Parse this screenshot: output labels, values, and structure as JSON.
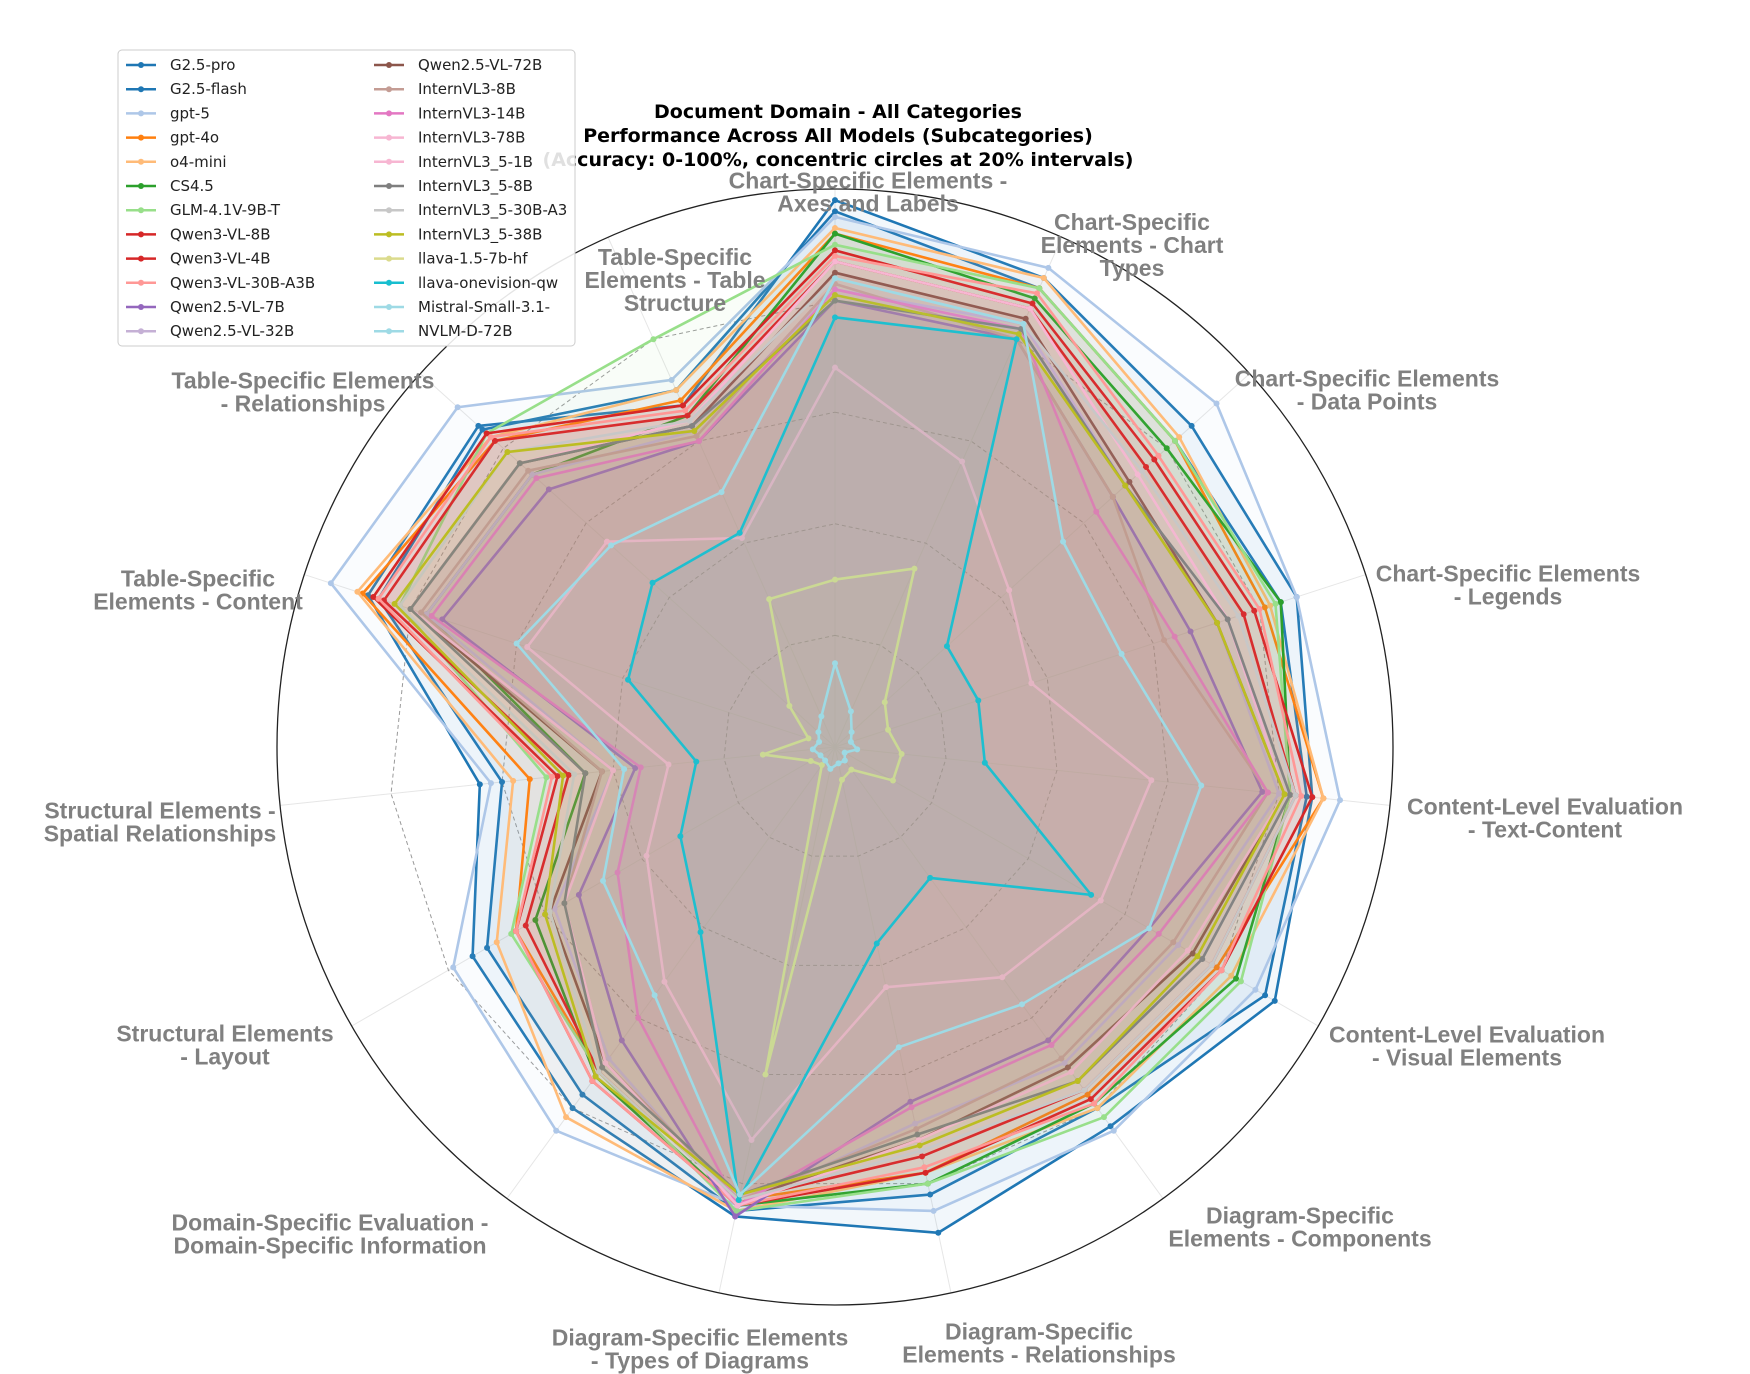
{
  "chart_data": {
    "type": "radar",
    "title": [
      "Document Domain - All Categories",
      "Performance Across All Models (Subcategories)",
      "(Accuracy: 0-100%, concentric circles at 20% intervals)"
    ],
    "r_range": [
      0,
      100
    ],
    "gridline_step": 20,
    "legend_position": "top-left",
    "categories": [
      "Chart-Specific Elements - Axes and Labels",
      "Chart-Specific Elements - Chart Types",
      "Chart-Specific Elements - Data Points",
      "Chart-Specific Elements - Legends",
      "Content-Level Evaluation - Text-Content",
      "Content-Level Evaluation - Visual Elements",
      "Diagram-Specific Elements - Components",
      "Diagram-Specific Elements - Relationships",
      "Diagram-Specific Elements - Types of Diagrams",
      "Domain-Specific Evaluation - Domain-Specific Information",
      "Structural Elements - Layout",
      "Structural Elements - Spatial Relationships",
      "Table-Specific Elements - Content",
      "Table-Specific Elements - Relationships",
      "Table-Specific Elements - Table Structure"
    ],
    "series": [
      {
        "name": "G2.5-pro",
        "color": "#1f77b4",
        "values": [
          98,
          92,
          86,
          87,
          86,
          91,
          84,
          89,
          86,
          80,
          75,
          64,
          88,
          86,
          67
        ]
      },
      {
        "name": "G2.5-flash",
        "color": "#1f77b4",
        "values": [
          96,
          90,
          82,
          84,
          85,
          89,
          80,
          82,
          85,
          77,
          72,
          60,
          86,
          85,
          70
        ]
      },
      {
        "name": "gpt-5",
        "color": "#aec7e8",
        "values": [
          95,
          94,
          92,
          87,
          91,
          87,
          85,
          85,
          84,
          85,
          79,
          62,
          95,
          91,
          72
        ]
      },
      {
        "name": "gpt-4o",
        "color": "#ff7f0e",
        "values": [
          92,
          90,
          82,
          81,
          88,
          79,
          77,
          78,
          83,
          72,
          66,
          55,
          89,
          82,
          68
        ]
      },
      {
        "name": "o4-mini",
        "color": "#ffbb78",
        "values": [
          93,
          92,
          83,
          82,
          88,
          82,
          80,
          78,
          85,
          82,
          70,
          58,
          90,
          83,
          70
        ]
      },
      {
        "name": "CS4.5",
        "color": "#2ca02c",
        "values": [
          92,
          88,
          80,
          84,
          82,
          83,
          79,
          80,
          84,
          73,
          62,
          45,
          77,
          73,
          65
        ]
      },
      {
        "name": "GLM-4.1V-9B-T",
        "color": "#98df8a",
        "values": [
          90,
          90,
          82,
          83,
          82,
          84,
          82,
          80,
          85,
          72,
          67,
          52,
          82,
          84,
          80
        ]
      },
      {
        "name": "Qwen3-VL-8B",
        "color": "#d62728",
        "values": [
          89,
          87,
          77,
          79,
          86,
          80,
          78,
          78,
          84,
          74,
          66,
          50,
          87,
          84,
          67
        ]
      },
      {
        "name": "Qwen3-VL-4B",
        "color": "#d62728",
        "values": [
          87,
          86,
          75,
          77,
          83,
          78,
          76,
          75,
          83,
          72,
          64,
          48,
          85,
          82,
          65
        ]
      },
      {
        "name": "Qwen3-VL-30B-A3B",
        "color": "#ff9896",
        "values": [
          88,
          89,
          78,
          80,
          84,
          80,
          79,
          77,
          84,
          74,
          66,
          51,
          86,
          83,
          66
        ]
      },
      {
        "name": "Qwen2.5-VL-7B",
        "color": "#9467bd",
        "values": [
          80,
          80,
          67,
          67,
          77,
          65,
          65,
          65,
          86,
          65,
          53,
          36,
          74,
          69,
          60
        ]
      },
      {
        "name": "Qwen2.5-VL-32B",
        "color": "#c5b0d5",
        "values": [
          82,
          83,
          70,
          72,
          80,
          71,
          70,
          69,
          84,
          69,
          58,
          40,
          77,
          73,
          62
        ]
      },
      {
        "name": "Qwen2.5-VL-72B",
        "color": "#8c564b",
        "values": [
          85,
          84,
          71,
          72,
          81,
          74,
          71,
          72,
          83,
          70,
          59,
          42,
          80,
          76,
          63
        ]
      },
      {
        "name": "InternVL3-8B",
        "color": "#c49c94",
        "values": [
          83,
          80,
          67,
          62,
          78,
          70,
          69,
          70,
          83,
          70,
          56,
          42,
          78,
          74,
          61
        ]
      },
      {
        "name": "InternVL3-14B",
        "color": "#e377c2",
        "values": [
          82,
          82,
          63,
          64,
          78,
          67,
          66,
          66,
          84,
          60,
          45,
          35,
          76,
          72,
          60
        ]
      },
      {
        "name": "InternVL3-78B",
        "color": "#f7b6d2",
        "values": [
          87,
          86,
          73,
          74,
          81,
          73,
          72,
          72,
          84,
          70,
          56,
          40,
          80,
          76,
          64
        ]
      },
      {
        "name": "InternVL3_5-1B",
        "color": "#f7b6d2",
        "values": [
          68,
          56,
          42,
          37,
          57,
          55,
          51,
          44,
          72,
          52,
          39,
          30,
          58,
          55,
          41
        ]
      },
      {
        "name": "InternVL3_5-8B",
        "color": "#7f7f7f",
        "values": [
          80,
          82,
          70,
          74,
          82,
          76,
          74,
          71,
          82,
          71,
          56,
          45,
          80,
          76,
          63
        ]
      },
      {
        "name": "InternVL3_5-30B-A3",
        "color": "#c7c7c7",
        "values": [
          84,
          83,
          74,
          76,
          83,
          78,
          76,
          74,
          83,
          72,
          59,
          47,
          82,
          79,
          64
        ]
      },
      {
        "name": "InternVL3_5-38B",
        "color": "#bcbd22",
        "values": [
          81,
          81,
          70,
          72,
          81,
          75,
          74,
          73,
          82,
          73,
          60,
          49,
          83,
          79,
          62
        ]
      },
      {
        "name": "llava-1.5-7b-hf",
        "color": "#dbdb8d",
        "values": [
          30,
          35,
          12,
          10,
          12,
          12,
          5,
          6,
          60,
          4,
          5,
          13,
          5,
          11,
          29
        ]
      },
      {
        "name": "llava-onevision-qw",
        "color": "#17becf",
        "values": [
          77,
          80,
          27,
          27,
          27,
          53,
          29,
          36,
          83,
          41,
          32,
          25,
          39,
          44,
          42
        ]
      },
      {
        "name": "Mistral-Small-3.1-",
        "color": "#9edae5",
        "values": [
          15,
          7,
          4,
          3,
          4,
          2,
          3,
          3,
          4,
          3,
          3,
          4,
          3,
          4,
          6
        ]
      },
      {
        "name": "NVLM-D-72B",
        "color": "#9edae5",
        "values": [
          84,
          83,
          55,
          54,
          66,
          65,
          57,
          55,
          82,
          55,
          48,
          38,
          60,
          54,
          50
        ]
      }
    ]
  }
}
